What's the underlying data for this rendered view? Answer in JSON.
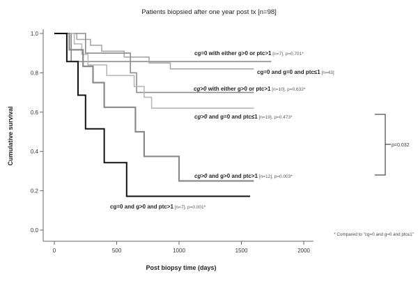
{
  "chart_data": {
    "type": "line",
    "title": "Patients biopsied after one year post tx [n=98]",
    "xlabel": "Post biopsy time (days)",
    "ylabel": "Cumulative survival",
    "xlim": [
      0,
      2000
    ],
    "ylim": [
      0.0,
      1.0
    ],
    "x_ticks": [
      "0",
      "500",
      "1000",
      "1500",
      "2000"
    ],
    "y_ticks": [
      "0.0",
      "0.2",
      "0.4",
      "0.6",
      "0.8",
      "1.0"
    ],
    "grid": false,
    "series": [
      {
        "name": "cg=0 with either g>0 or ptc>1 [n=7], p=0.701*",
        "color": "#8a8a8a",
        "points": [
          [
            0,
            1.0
          ],
          [
            135,
            1.0
          ],
          [
            135,
            0.857
          ],
          [
            1740,
            0.857
          ]
        ]
      },
      {
        "name": "cg=0 and g=0 and ptc≤1 [n=43]",
        "color": "#a8a8a8",
        "points": [
          [
            0,
            1.0
          ],
          [
            180,
            1.0
          ],
          [
            180,
            0.97
          ],
          [
            290,
            0.97
          ],
          [
            290,
            0.94
          ],
          [
            380,
            0.94
          ],
          [
            380,
            0.91
          ],
          [
            560,
            0.91
          ],
          [
            560,
            0.88
          ],
          [
            760,
            0.88
          ],
          [
            760,
            0.85
          ],
          [
            930,
            0.85
          ],
          [
            930,
            0.82
          ],
          [
            1600,
            0.82
          ]
        ]
      },
      {
        "name": "cg>0 with either g>0 or ptc>1 [n=10], p=0.632*",
        "color": "#8a8a8a",
        "points": [
          [
            0,
            1.0
          ],
          [
            250,
            1.0
          ],
          [
            250,
            0.9
          ],
          [
            610,
            0.9
          ],
          [
            610,
            0.8
          ],
          [
            660,
            0.8
          ],
          [
            660,
            0.7
          ],
          [
            1600,
            0.7
          ]
        ]
      },
      {
        "name": "cg>0 and g=0 and ptc≤1 [n=19], p=0.473*",
        "color": "#b8b8b8",
        "points": [
          [
            0,
            1.0
          ],
          [
            160,
            1.0
          ],
          [
            160,
            0.947
          ],
          [
            220,
            0.947
          ],
          [
            220,
            0.894
          ],
          [
            270,
            0.894
          ],
          [
            270,
            0.84
          ],
          [
            420,
            0.84
          ],
          [
            420,
            0.786
          ],
          [
            640,
            0.786
          ],
          [
            640,
            0.73
          ],
          [
            720,
            0.73
          ],
          [
            720,
            0.676
          ],
          [
            780,
            0.676
          ],
          [
            780,
            0.62
          ],
          [
            1600,
            0.62
          ]
        ]
      },
      {
        "name": "cg>0 and g>0 and ptc>1 [n=12], p=0.003*",
        "color": "#8a8a8a",
        "points": [
          [
            0,
            1.0
          ],
          [
            120,
            1.0
          ],
          [
            120,
            0.917
          ],
          [
            230,
            0.917
          ],
          [
            230,
            0.833
          ],
          [
            310,
            0.833
          ],
          [
            310,
            0.75
          ],
          [
            400,
            0.75
          ],
          [
            400,
            0.625
          ],
          [
            650,
            0.625
          ],
          [
            650,
            0.5
          ],
          [
            720,
            0.5
          ],
          [
            720,
            0.375
          ],
          [
            1000,
            0.375
          ],
          [
            1000,
            0.25
          ],
          [
            1600,
            0.25
          ]
        ]
      },
      {
        "name": "cg=0 and g>0 and ptc>1 [n=7], p=0.001*",
        "color": "#111111",
        "points": [
          [
            0,
            1.0
          ],
          [
            100,
            1.0
          ],
          [
            100,
            0.857
          ],
          [
            190,
            0.857
          ],
          [
            190,
            0.686
          ],
          [
            250,
            0.686
          ],
          [
            250,
            0.515
          ],
          [
            400,
            0.515
          ],
          [
            400,
            0.343
          ],
          [
            580,
            0.343
          ],
          [
            580,
            0.172
          ],
          [
            1570,
            0.172
          ]
        ]
      }
    ],
    "annotations": {
      "bracket_label": "p=0.032",
      "footnote": "* Compared to \"cg=0 and g=0 and ptc≤1\""
    }
  },
  "labels": {
    "s1_main": "cg=0 with either g>0 or ptc>1",
    "s1_tail": " [n=7], p=0.701*",
    "s2_main": "cg=0 and g=0 and ptc≤1",
    "s2_tail": " [n=43]",
    "s3_italic": "cg>0",
    "s3_main": " with either g>0 or ptc>1",
    "s3_tail": " [n=10], p=0.632*",
    "s4_italic": "cg>0",
    "s4_main": " and g=0 and ptc≤1",
    "s4_tail": " [n=19], p=0.473*",
    "s5_italic": "cg>0",
    "s5_main": " and g>0 and ptc>1",
    "s5_tail": " [n=12], p=0.003*",
    "s6_main": "cg=0 and g>0 and ptc>1",
    "s6_tail": " [n=7], p=0.001*"
  }
}
